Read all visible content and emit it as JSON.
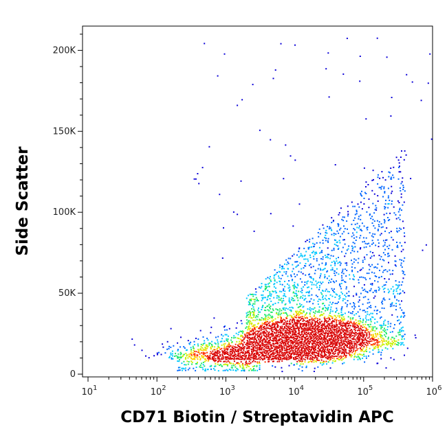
{
  "chart_data": {
    "type": "scatter",
    "title": "",
    "xlabel": "CD71 Biotin / Streptavidin APC",
    "ylabel": "Side Scatter",
    "x_scale": "log",
    "xlim": [
      10,
      1000000
    ],
    "ylim": [
      0,
      215000
    ],
    "grid": false,
    "x_ticks": [
      {
        "value": 10,
        "base": "10",
        "exp": "1"
      },
      {
        "value": 100,
        "base": "10",
        "exp": "2"
      },
      {
        "value": 1000,
        "base": "10",
        "exp": "3"
      },
      {
        "value": 10000,
        "base": "10",
        "exp": "4"
      },
      {
        "value": 100000,
        "base": "10",
        "exp": "5"
      },
      {
        "value": 1000000,
        "base": "10",
        "exp": "6"
      }
    ],
    "y_ticks": [
      {
        "value": 0,
        "label": "0"
      },
      {
        "value": 50000,
        "label": "50K"
      },
      {
        "value": 100000,
        "label": "100K"
      },
      {
        "value": 150000,
        "label": "150K"
      },
      {
        "value": 200000,
        "label": "200K"
      }
    ],
    "density": "pseudocolor (blue → cyan → green → yellow → red)",
    "population": {
      "peak_x": 20000,
      "peak_y": 22000,
      "main_cluster_x_range": [
        2000,
        300000
      ],
      "main_cluster_y_range": [
        8000,
        35000
      ],
      "upper_spread_y_max": 120000
    },
    "color_scale": [
      "#0a00d8",
      "#0066ff",
      "#00c8ff",
      "#1ee86a",
      "#c8f000",
      "#ffd000",
      "#ff3000",
      "#d80000"
    ]
  }
}
